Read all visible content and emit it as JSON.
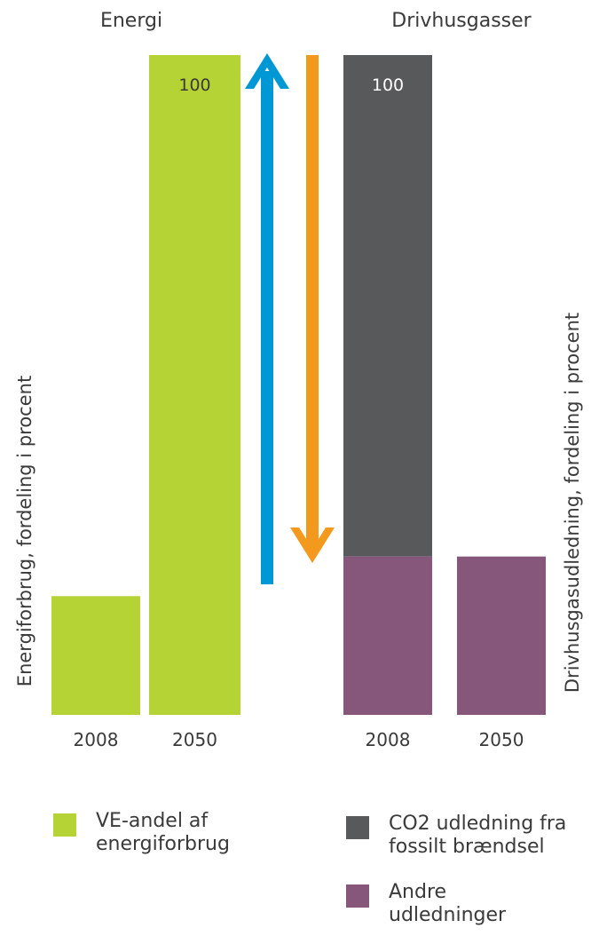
{
  "chart_data": [
    {
      "type": "bar",
      "title": "Energi",
      "ylabel": "Energiforbrug, fordeling i procent",
      "categories": [
        "2008",
        "2050"
      ],
      "ylim": [
        0,
        100
      ],
      "series": [
        {
          "name": "VE-andel af energiforbrug",
          "color": "#b5d334",
          "values": [
            18,
            100
          ]
        }
      ],
      "data_labels": [
        "",
        "100"
      ],
      "annotation": {
        "type": "arrow",
        "direction": "up",
        "color": "#0098d4"
      }
    },
    {
      "type": "bar",
      "stacked": true,
      "title": "Drivhusgasser",
      "ylabel": "Drivhusgasudledning, fordeling i procent",
      "categories": [
        "2008",
        "2050"
      ],
      "ylim": [
        0,
        100
      ],
      "series": [
        {
          "name": "Andre udledninger",
          "color": "#86567b",
          "values": [
            24,
            24
          ]
        },
        {
          "name": "CO2 udledning fra fossilt brændsel",
          "color": "#58595b",
          "values": [
            76,
            0
          ]
        }
      ],
      "data_labels": [
        "100",
        ""
      ],
      "annotation": {
        "type": "arrow",
        "direction": "down",
        "color": "#f39a1e"
      }
    }
  ],
  "legend": [
    {
      "line1": "VE-andel af",
      "line2": "energiforbrug",
      "color": "#b5d334"
    },
    {
      "line1": "CO2 udledning fra",
      "line2": "fossilt brændsel",
      "color": "#58595b"
    },
    {
      "line1": "Andre",
      "line2": "udledninger",
      "color": "#86567b"
    }
  ]
}
